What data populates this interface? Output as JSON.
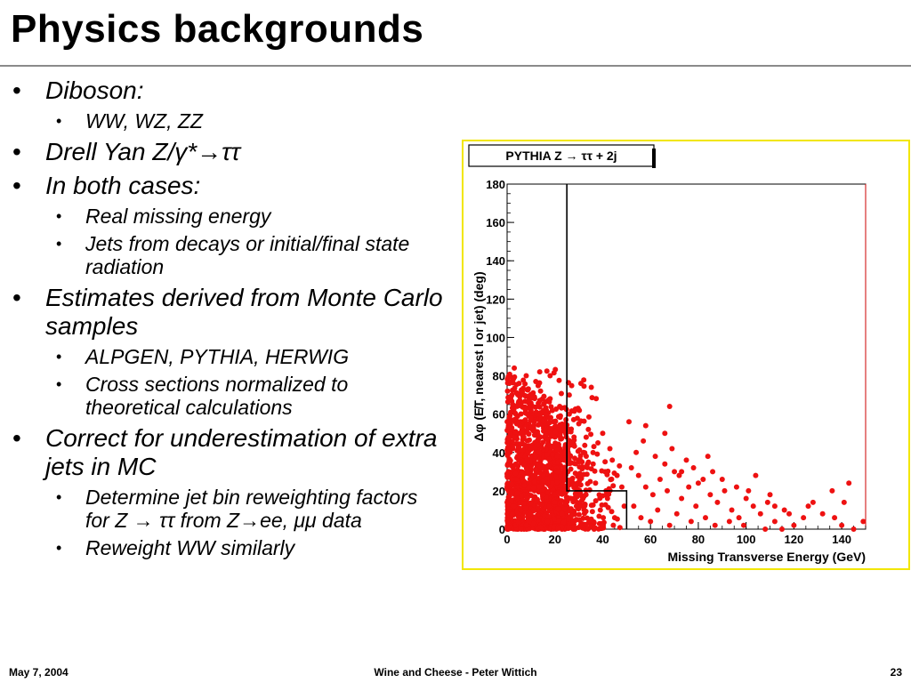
{
  "slide": {
    "title": "Physics backgrounds",
    "bullets": [
      {
        "level": 1,
        "text": "Diboson:"
      },
      {
        "level": 2,
        "text": "WW, WZ, ZZ"
      },
      {
        "level": 1,
        "text": "Drell Yan Z/γ*→ττ"
      },
      {
        "level": 1,
        "text": "In both cases:"
      },
      {
        "level": 2,
        "text": "Real missing energy"
      },
      {
        "level": 2,
        "text": "Jets from decays or initial/final state radiation"
      },
      {
        "level": 1,
        "text": "Estimates derived from Monte Carlo samples"
      },
      {
        "level": 2,
        "text": "ALPGEN, PYTHIA, HERWIG"
      },
      {
        "level": 2,
        "text": "Cross sections normalized to theoretical calculations"
      },
      {
        "level": 1,
        "text": "Correct for underestimation of extra jets in MC"
      },
      {
        "level": 2,
        "text": "Determine jet bin reweighting factors for Z → ττ from Z→ee, μμ data"
      },
      {
        "level": 2,
        "text": "Reweight WW similarly"
      }
    ]
  },
  "footer": {
    "date": "May 7, 2004",
    "center": "Wine and Cheese - Peter Wittich",
    "page": "23"
  },
  "colors": {
    "points": "#ee1111",
    "plot_frame": "#f2e600",
    "title_rule": "#8a8a8a"
  },
  "chart_data": {
    "type": "scatter",
    "title": "PYTHIA Z → ττ + 2j",
    "xlabel": "Missing Transverse Energy (GeV)",
    "ylabel": "Δφ (E̸T, nearest l or jet) (deg)",
    "xlim": [
      0,
      150
    ],
    "ylim": [
      0,
      180
    ],
    "xticks": [
      "0",
      "20",
      "40",
      "60",
      "80",
      "100",
      "120",
      "140"
    ],
    "yticks": [
      "0",
      "20",
      "40",
      "60",
      "80",
      "100",
      "120",
      "140",
      "160",
      "180"
    ],
    "grid": false,
    "cut_line": {
      "x": [
        25,
        25,
        50,
        50
      ],
      "y": [
        180,
        20,
        20,
        0
      ]
    },
    "dense_region": {
      "x_range": [
        0,
        50
      ],
      "y_range": [
        0,
        85
      ],
      "peak_x": 15
    },
    "points": [
      [
        3,
        84
      ],
      [
        8,
        80
      ],
      [
        12,
        77
      ],
      [
        2,
        70
      ],
      [
        6,
        66
      ],
      [
        14,
        72
      ],
      [
        18,
        68
      ],
      [
        22,
        64
      ],
      [
        10,
        58
      ],
      [
        4,
        55
      ],
      [
        16,
        52
      ],
      [
        20,
        48
      ],
      [
        26,
        60
      ],
      [
        30,
        55
      ],
      [
        28,
        48
      ],
      [
        34,
        52
      ],
      [
        38,
        45
      ],
      [
        32,
        40
      ],
      [
        24,
        36
      ],
      [
        12,
        38
      ],
      [
        6,
        30
      ],
      [
        2,
        26
      ],
      [
        9,
        22
      ],
      [
        15,
        18
      ],
      [
        20,
        14
      ],
      [
        11,
        10
      ],
      [
        5,
        6
      ],
      [
        17,
        4
      ],
      [
        23,
        8
      ],
      [
        29,
        12
      ],
      [
        33,
        18
      ],
      [
        37,
        24
      ],
      [
        41,
        30
      ],
      [
        44,
        36
      ],
      [
        46,
        28
      ],
      [
        48,
        22
      ],
      [
        42,
        16
      ],
      [
        39,
        10
      ],
      [
        35,
        5
      ],
      [
        31,
        3
      ],
      [
        27,
        26
      ],
      [
        21,
        30
      ],
      [
        13,
        44
      ],
      [
        7,
        48
      ],
      [
        1,
        40
      ],
      [
        3,
        12
      ],
      [
        8,
        2
      ],
      [
        14,
        1
      ],
      [
        19,
        24
      ],
      [
        25,
        20
      ],
      [
        43,
        42
      ],
      [
        47,
        33
      ],
      [
        49,
        12
      ],
      [
        45,
        6
      ],
      [
        36,
        34
      ],
      [
        40,
        50
      ],
      [
        26,
        70
      ],
      [
        18,
        80
      ],
      [
        10,
        62
      ],
      [
        5,
        76
      ],
      [
        52,
        32
      ],
      [
        55,
        28
      ],
      [
        58,
        22
      ],
      [
        61,
        18
      ],
      [
        64,
        26
      ],
      [
        67,
        20
      ],
      [
        70,
        30
      ],
      [
        73,
        16
      ],
      [
        76,
        22
      ],
      [
        79,
        12
      ],
      [
        82,
        26
      ],
      [
        85,
        18
      ],
      [
        88,
        14
      ],
      [
        91,
        20
      ],
      [
        94,
        10
      ],
      [
        97,
        6
      ],
      [
        100,
        16
      ],
      [
        103,
        12
      ],
      [
        106,
        8
      ],
      [
        109,
        14
      ],
      [
        112,
        4
      ],
      [
        116,
        10
      ],
      [
        120,
        2
      ],
      [
        124,
        6
      ],
      [
        128,
        14
      ],
      [
        132,
        8
      ],
      [
        136,
        20
      ],
      [
        140,
        2
      ],
      [
        143,
        24
      ],
      [
        149,
        4
      ],
      [
        54,
        40
      ],
      [
        57,
        46
      ],
      [
        62,
        38
      ],
      [
        66,
        34
      ],
      [
        69,
        42
      ],
      [
        72,
        28
      ],
      [
        75,
        36
      ],
      [
        80,
        24
      ],
      [
        86,
        30
      ],
      [
        90,
        26
      ],
      [
        96,
        22
      ],
      [
        104,
        28
      ],
      [
        110,
        18
      ],
      [
        58,
        54
      ],
      [
        66,
        50
      ],
      [
        68,
        64
      ],
      [
        73,
        30
      ],
      [
        53,
        12
      ],
      [
        56,
        6
      ],
      [
        60,
        4
      ],
      [
        63,
        10
      ],
      [
        68,
        2
      ],
      [
        71,
        8
      ],
      [
        77,
        4
      ],
      [
        83,
        6
      ],
      [
        87,
        2
      ],
      [
        93,
        4
      ],
      [
        99,
        2
      ],
      [
        108,
        0
      ],
      [
        115,
        0
      ],
      [
        137,
        6
      ],
      [
        141,
        14
      ],
      [
        145,
        0
      ],
      [
        118,
        8
      ],
      [
        126,
        12
      ],
      [
        112,
        12
      ],
      [
        101,
        20
      ],
      [
        84,
        38
      ],
      [
        78,
        32
      ],
      [
        51,
        56
      ]
    ]
  }
}
